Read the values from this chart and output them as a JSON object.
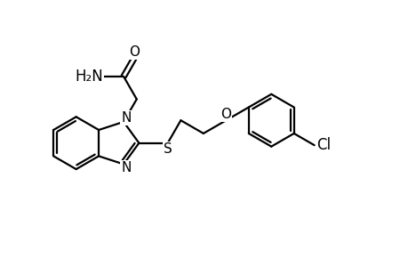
{
  "bg_color": "#ffffff",
  "line_color": "#000000",
  "line_width": 1.6,
  "font_size": 11,
  "figsize": [
    4.6,
    3.0
  ],
  "dpi": 100,
  "bl": 0.55,
  "xlim": [
    0.0,
    8.5
  ],
  "ylim": [
    1.2,
    5.5
  ]
}
